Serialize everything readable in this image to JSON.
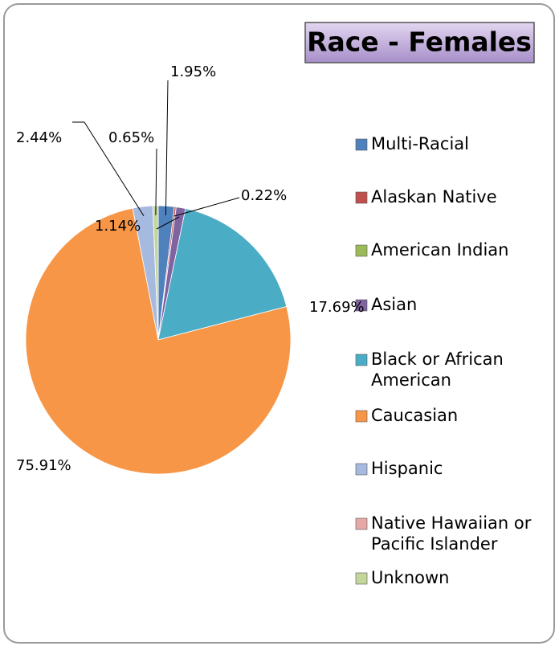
{
  "chart_data": {
    "type": "pie",
    "title": "Race - Females",
    "categories": [
      "Multi-Racial",
      "Alaskan Native",
      "American Indian",
      "Asian",
      "Black or African American",
      "Caucasian",
      "Hispanic",
      "Native Hawaiian or Pacific Islander",
      "Unknown"
    ],
    "values": [
      1.95,
      0.22,
      0,
      1.14,
      17.69,
      75.91,
      2.44,
      0,
      0.65
    ],
    "value_labels": [
      "1.95%",
      "0.22%",
      null,
      "1.14%",
      "17.69%",
      "75.91%",
      "2.44%",
      null,
      "0.65%"
    ],
    "colors": [
      "#4f81bd",
      "#c0504d",
      "#9bbb59",
      "#8064a2",
      "#4bacc6",
      "#f79646",
      "#a6b9df",
      "#e6a9a7",
      "#c3d69b"
    ],
    "legend": "right"
  }
}
